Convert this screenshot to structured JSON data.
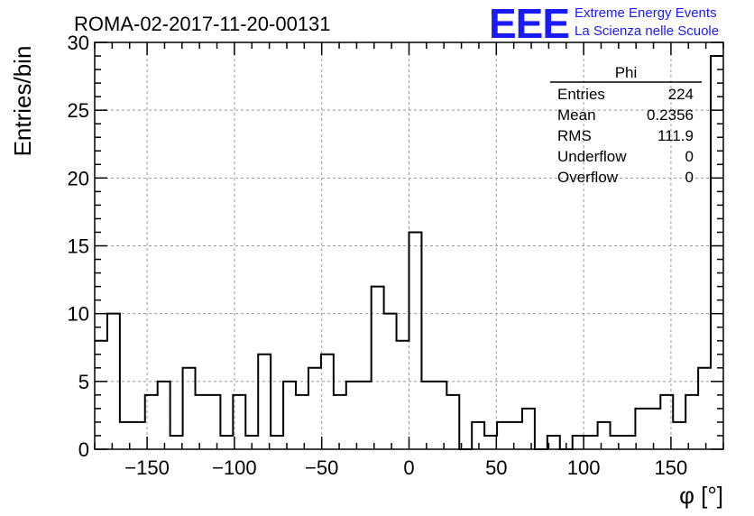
{
  "chart_data": {
    "type": "histogram",
    "title": "ROMA-02-2017-11-20-00131",
    "xlabel": "φ [°]",
    "ylabel": "Entries/bin",
    "xlim": [
      -180,
      180
    ],
    "ylim": [
      0,
      30
    ],
    "bin_width": 7.2,
    "x_ticks": [
      -150,
      -100,
      -50,
      0,
      50,
      100,
      150
    ],
    "y_ticks": [
      0,
      5,
      10,
      15,
      20,
      25,
      30
    ],
    "grid": true,
    "bins": [
      {
        "x": -176.4,
        "value": 8
      },
      {
        "x": -169.2,
        "value": 10
      },
      {
        "x": -162.0,
        "value": 2
      },
      {
        "x": -154.8,
        "value": 2
      },
      {
        "x": -147.6,
        "value": 4
      },
      {
        "x": -140.4,
        "value": 5
      },
      {
        "x": -133.2,
        "value": 1
      },
      {
        "x": -126.0,
        "value": 6
      },
      {
        "x": -118.8,
        "value": 4
      },
      {
        "x": -111.6,
        "value": 4
      },
      {
        "x": -104.4,
        "value": 1
      },
      {
        "x": -97.2,
        "value": 4
      },
      {
        "x": -90.0,
        "value": 1
      },
      {
        "x": -82.8,
        "value": 7
      },
      {
        "x": -75.6,
        "value": 1
      },
      {
        "x": -68.4,
        "value": 5
      },
      {
        "x": -61.2,
        "value": 4
      },
      {
        "x": -54.0,
        "value": 6
      },
      {
        "x": -46.8,
        "value": 7
      },
      {
        "x": -39.6,
        "value": 4
      },
      {
        "x": -32.4,
        "value": 5
      },
      {
        "x": -25.2,
        "value": 5
      },
      {
        "x": -18.0,
        "value": 12
      },
      {
        "x": -10.8,
        "value": 10
      },
      {
        "x": -3.6,
        "value": 8
      },
      {
        "x": 3.6,
        "value": 16
      },
      {
        "x": 10.8,
        "value": 5
      },
      {
        "x": 18.0,
        "value": 5
      },
      {
        "x": 25.2,
        "value": 4
      },
      {
        "x": 32.4,
        "value": 0
      },
      {
        "x": 39.6,
        "value": 2
      },
      {
        "x": 46.8,
        "value": 1
      },
      {
        "x": 54.0,
        "value": 2
      },
      {
        "x": 61.2,
        "value": 2
      },
      {
        "x": 68.4,
        "value": 3
      },
      {
        "x": 75.6,
        "value": 0
      },
      {
        "x": 82.8,
        "value": 1
      },
      {
        "x": 90.0,
        "value": 0
      },
      {
        "x": 97.2,
        "value": 1
      },
      {
        "x": 104.4,
        "value": 1
      },
      {
        "x": 111.6,
        "value": 2
      },
      {
        "x": 118.8,
        "value": 1
      },
      {
        "x": 126.0,
        "value": 1
      },
      {
        "x": 133.2,
        "value": 3
      },
      {
        "x": 140.4,
        "value": 3
      },
      {
        "x": 147.6,
        "value": 4
      },
      {
        "x": 154.8,
        "value": 2
      },
      {
        "x": 162.0,
        "value": 4
      },
      {
        "x": 169.2,
        "value": 6
      },
      {
        "x": 176.4,
        "value": 29
      }
    ]
  },
  "logo": {
    "mark": "EEE",
    "line1": "Extreme Energy Events",
    "line2": "La Scienza nelle Scuole"
  },
  "stats_box": {
    "title": "Phi",
    "rows": [
      {
        "label": "Entries",
        "value": "224"
      },
      {
        "label": "Mean",
        "value": "0.2356"
      },
      {
        "label": "RMS",
        "value": "111.9"
      },
      {
        "label": "Underflow",
        "value": "0"
      },
      {
        "label": "Overflow",
        "value": "0"
      }
    ]
  },
  "colors": {
    "logo": "#1a1aff",
    "grid": "#999999",
    "line": "#000000"
  }
}
